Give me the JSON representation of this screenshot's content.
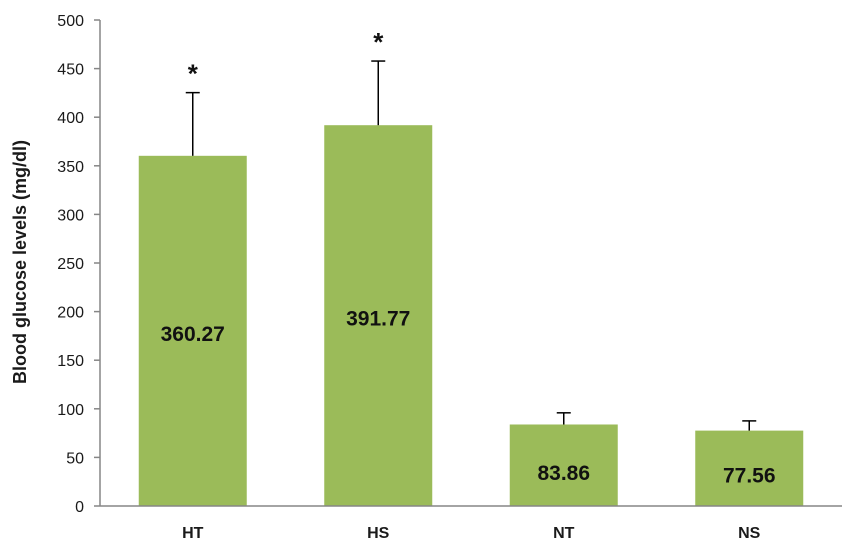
{
  "chart_data": {
    "type": "bar",
    "title": "",
    "xlabel": "",
    "ylabel": "Blood glucose levels (mg/dl)",
    "ylim": [
      0,
      500
    ],
    "yticks": [
      0,
      50,
      100,
      150,
      200,
      250,
      300,
      350,
      400,
      450,
      500
    ],
    "grid": false,
    "categories": [
      "HT",
      "HS",
      "NT",
      "NS"
    ],
    "values": [
      360.27,
      391.77,
      83.86,
      77.56
    ],
    "value_labels": [
      "360.27",
      "391.77",
      "83.86",
      "77.56"
    ],
    "error_upper": [
      65,
      66,
      12,
      10
    ],
    "significance": [
      "*",
      "*",
      "",
      ""
    ],
    "bar_color": "#9bbb59",
    "axis_color": "#868686"
  }
}
